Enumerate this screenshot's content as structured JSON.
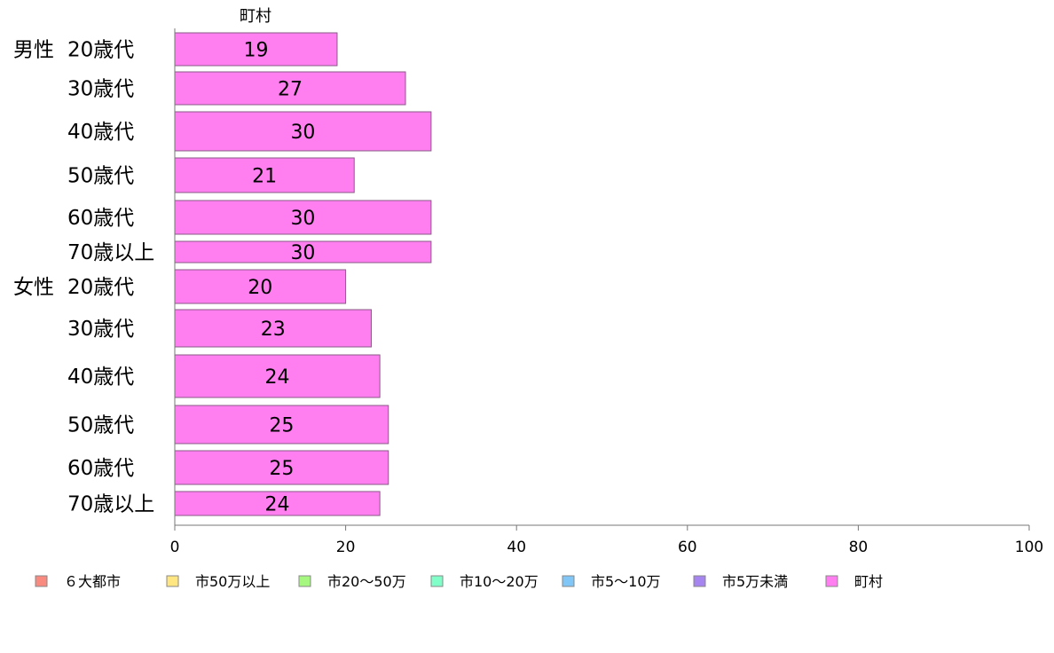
{
  "chart_data": {
    "type": "bar",
    "orientation": "horizontal",
    "series_label": "町村",
    "groups": [
      {
        "name": "男性",
        "categories": [
          "20歳代",
          "30歳代",
          "40歳代",
          "50歳代",
          "60歳代",
          "70歳以上"
        ]
      },
      {
        "name": "女性",
        "categories": [
          "20歳代",
          "30歳代",
          "40歳代",
          "50歳代",
          "60歳代",
          "70歳以上"
        ]
      }
    ],
    "series": [
      {
        "name": "町村",
        "color": "#ff7ff0",
        "values": [
          19,
          27,
          30,
          21,
          30,
          30,
          20,
          23,
          24,
          25,
          25,
          24
        ]
      }
    ],
    "value_labels": [
      "19",
      "27",
      "30",
      "21",
      "30",
      "30",
      "20",
      "23",
      "24",
      "25",
      "25",
      "24"
    ],
    "xlim": [
      0,
      100
    ],
    "xticks": [
      0,
      20,
      40,
      60,
      80,
      100
    ],
    "grid": false,
    "legend_position": "bottom",
    "legend": [
      {
        "label": "６大都市",
        "color": "#f88a80"
      },
      {
        "label": "市50万以上",
        "color": "#ffe680"
      },
      {
        "label": "市20〜50万",
        "color": "#a6f780"
      },
      {
        "label": "市10〜20万",
        "color": "#80ffc8"
      },
      {
        "label": "市5〜10万",
        "color": "#80c6f7"
      },
      {
        "label": "市5万未満",
        "color": "#a685f0"
      },
      {
        "label": "町村",
        "color": "#ff7ff0"
      }
    ],
    "bar_border_color": "#8a5a87"
  }
}
